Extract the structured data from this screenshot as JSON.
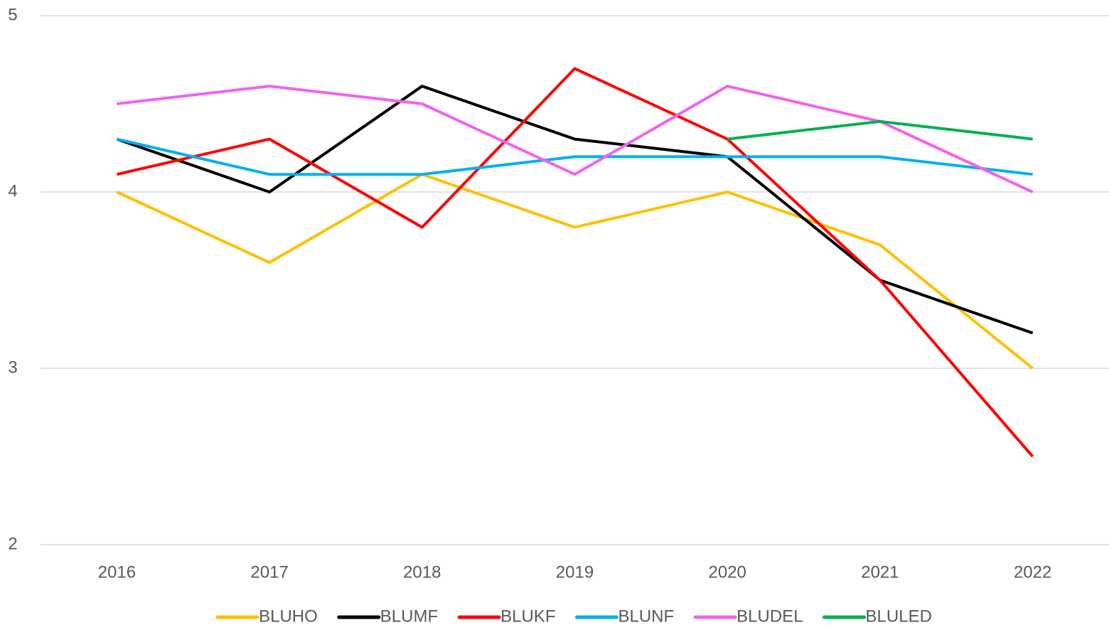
{
  "chart_data": {
    "type": "line",
    "categories": [
      "2016",
      "2017",
      "2018",
      "2019",
      "2020",
      "2021",
      "2022"
    ],
    "series": [
      {
        "name": "BLUHO",
        "color": "#ffc000",
        "values": [
          4.0,
          3.6,
          4.1,
          3.8,
          4.0,
          3.7,
          3.0
        ]
      },
      {
        "name": "BLUMF",
        "color": "#000000",
        "values": [
          4.3,
          4.0,
          4.6,
          4.3,
          4.2,
          3.5,
          3.2
        ]
      },
      {
        "name": "BLUKF",
        "color": "#ff0000",
        "values": [
          4.1,
          4.3,
          3.8,
          4.7,
          4.3,
          3.5,
          2.5
        ]
      },
      {
        "name": "BLUNF",
        "color": "#00b0f0",
        "values": [
          4.3,
          4.1,
          4.1,
          4.2,
          4.2,
          4.2,
          4.1
        ]
      },
      {
        "name": "BLUDEL",
        "color": "#f062f0",
        "values": [
          4.5,
          4.6,
          4.5,
          4.1,
          4.6,
          4.4,
          4.0
        ]
      },
      {
        "name": "BLULED",
        "color": "#00b050",
        "values": [
          null,
          null,
          null,
          null,
          4.3,
          4.4,
          4.3
        ]
      }
    ],
    "ylim": [
      2,
      5
    ],
    "yticks": [
      2,
      3,
      4,
      5
    ],
    "grid": true,
    "legend": "bottom"
  }
}
